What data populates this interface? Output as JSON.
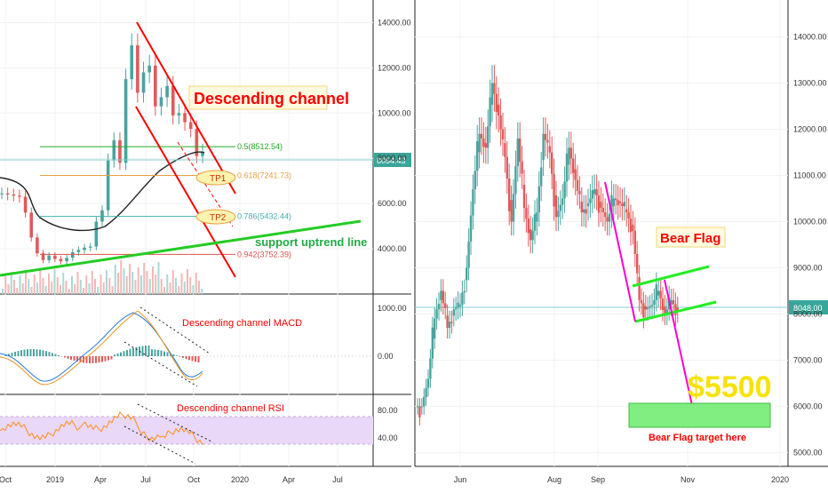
{
  "colors": {
    "up": "#4aa3a0",
    "down": "#e05a5a",
    "channel": "#ff0000",
    "support": "#22cc22",
    "flag": "#ff00cc",
    "price_line": "#7fcfcf",
    "ma": "#222222",
    "rsi_band": "#e9d8f7",
    "target_box": "#80ee80"
  },
  "chart_data": [
    {
      "type": "line",
      "name_hint": "left-price",
      "x_ticks": [
        "Oct",
        "2019",
        "Apr",
        "Jul",
        "Oct",
        "2020",
        "Apr",
        "Jul"
      ],
      "y_ticks": [
        4000,
        6000,
        8000,
        10000,
        12000,
        14000
      ],
      "y_tick_labels": [
        "4000.00",
        "6000.00",
        "8000.00",
        "10000.00",
        "12000.00",
        "14000.00"
      ],
      "ylim": [
        2000,
        15000
      ],
      "price_line_label": "8054.43",
      "price_line_value": 8054.43,
      "close": [
        6450,
        6400,
        6350,
        6300,
        5600,
        4500,
        3800,
        3500,
        3700,
        3550,
        3450,
        3600,
        3850,
        3950,
        4050,
        4100,
        5200,
        5700,
        7900,
        8800,
        7800,
        11500,
        13000,
        10900,
        11800,
        12100,
        10300,
        10700,
        11200,
        9900,
        10000,
        9600,
        9300,
        8100,
        8300
      ],
      "fib_levels": [
        {
          "label": "0.5(8512.54)",
          "value": 8512.54,
          "color": "#22aa22"
        },
        {
          "label": "0.618(7241.73)",
          "value": 7241.73,
          "color": "#e8a040"
        },
        {
          "label": "0.786(5432.44)",
          "value": 5432.44,
          "color": "#40b0b0"
        },
        {
          "label": "0.942(3752.39)",
          "value": 3752.39,
          "color": "#e05050"
        }
      ],
      "annotations": [
        "Descending channel",
        "TP1",
        "TP2",
        "support uptrend line"
      ]
    },
    {
      "type": "line",
      "name_hint": "macd",
      "y_ticks": [
        1000,
        0
      ],
      "y_tick_labels": [
        "1000.00",
        "0.00"
      ],
      "annotation": "Descending channel MACD"
    },
    {
      "type": "line",
      "name_hint": "rsi",
      "y_ticks": [
        80,
        40
      ],
      "y_tick_labels": [
        "80.00",
        "40.00"
      ],
      "band": [
        40,
        80
      ],
      "annotation": "Descending channel RSI"
    },
    {
      "type": "line",
      "name_hint": "right-price",
      "x_ticks": [
        "Jun",
        "Aug",
        "Sep",
        "Nov",
        "2020"
      ],
      "y_ticks": [
        5000,
        6000,
        7000,
        8000,
        9000,
        10000,
        11000,
        12000,
        13000,
        14000
      ],
      "y_tick_labels": [
        "5000.00",
        "6000.00",
        "7000.00",
        "8000.00",
        "9000.00",
        "10000.00",
        "11000.00",
        "12000.00",
        "13000.00",
        "14000.00"
      ],
      "ylim": [
        4700,
        14800
      ],
      "price_line_label": "8048.00",
      "price_line_value": 8048.0,
      "close": [
        6000,
        6600,
        7900,
        8500,
        7700,
        8100,
        8200,
        9000,
        10700,
        11900,
        11600,
        13000,
        12300,
        11400,
        10000,
        11800,
        10300,
        9600,
        10200,
        11900,
        11500,
        10100,
        10500,
        11600,
        10900,
        10200,
        10400,
        10700,
        10300,
        10000,
        10500,
        10400,
        10200,
        9800,
        8300,
        8100,
        8200,
        8500,
        8000,
        8300,
        8050
      ],
      "annotations": [
        "Bear Flag",
        "$5500",
        "Bear Flag target here"
      ],
      "target_value": 5500
    }
  ]
}
